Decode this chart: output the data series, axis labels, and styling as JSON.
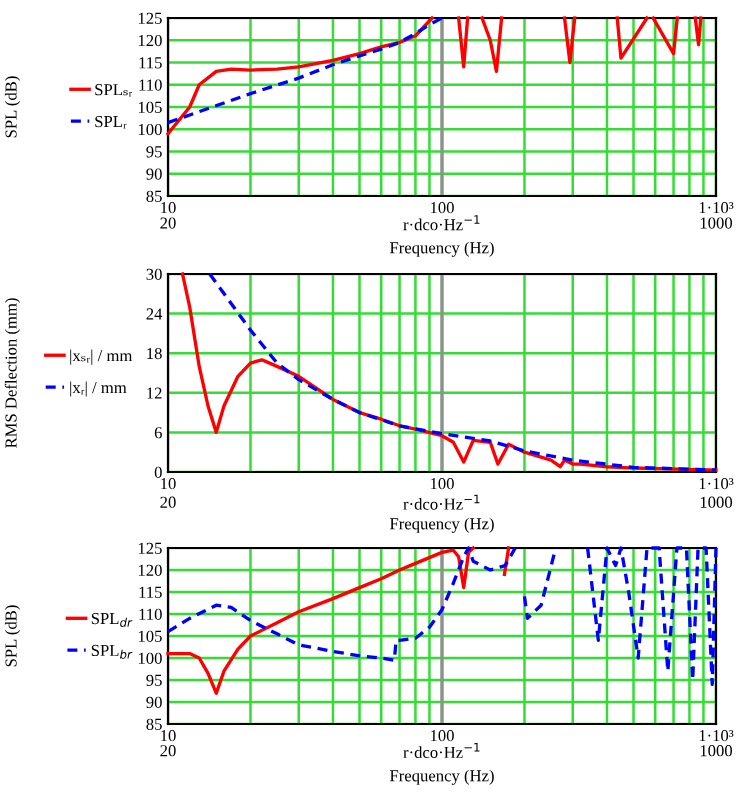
{
  "chart_data": [
    {
      "type": "line",
      "ylabel": "SPL (dB)",
      "xlabel": "Frequency (Hz)",
      "annotations": [
        "20",
        "1000",
        "r·dco·Hz$^{−1}$"
      ],
      "log": "x",
      "grid": true,
      "legend": "left",
      "xlim": [
        10,
        1000
      ],
      "xticks": [
        {
          "value": 10,
          "label": "10"
        },
        {
          "value": 20,
          "label": null
        },
        {
          "value": 30,
          "label": null
        },
        {
          "value": 40,
          "label": null
        },
        {
          "value": 50,
          "label": null
        },
        {
          "value": 60,
          "label": null
        },
        {
          "value": 70,
          "label": null
        },
        {
          "value": 80,
          "label": null
        },
        {
          "value": 90,
          "label": null
        },
        {
          "value": 100,
          "label": "100"
        },
        {
          "value": 200,
          "label": null
        },
        {
          "value": 300,
          "label": null
        },
        {
          "value": 400,
          "label": null
        },
        {
          "value": 500,
          "label": null
        },
        {
          "value": 600,
          "label": null
        },
        {
          "value": 700,
          "label": null
        },
        {
          "value": 800,
          "label": null
        },
        {
          "value": 900,
          "label": null
        },
        {
          "value": 1000,
          "label": "1·10³"
        }
      ],
      "ylim": [
        85,
        125
      ],
      "yticks": [
        85,
        90,
        95,
        100,
        105,
        110,
        115,
        120,
        125
      ],
      "ref_lines": [
        {
          "axis": "x",
          "value": 100,
          "color": "#909090"
        }
      ],
      "series": [
        {
          "name": "SPLₛᵣ",
          "color": "#ff0000",
          "line_style": "solid",
          "x": [
            10,
            12,
            13,
            15,
            17,
            20,
            25,
            30,
            40,
            50,
            60,
            70,
            80,
            92,
            110,
            115,
            120,
            124,
            127,
            140,
            150,
            158,
            165,
            170,
            280,
            293,
            305,
            420,
            436,
            450,
            560,
            576,
            590,
            700,
            722,
            740,
            840,
            864,
            880
          ],
          "values": [
            99,
            105,
            110,
            113,
            113.5,
            113.3,
            113.5,
            114,
            115.5,
            117,
            118.5,
            119.5,
            121,
            125,
            null,
            125,
            114,
            125,
            null,
            125,
            120,
            113,
            125,
            null,
            125,
            115,
            125,
            null,
            125,
            116,
            125,
            null,
            125,
            117,
            125,
            null,
            125,
            119,
            125
          ]
        },
        {
          "name": "SPLᵣ",
          "color": "#0000ff",
          "line_style": "dashed",
          "x": [
            10,
            20,
            30,
            40,
            50,
            60,
            70,
            80,
            90,
            100
          ],
          "values": [
            101.5,
            108,
            111.5,
            114.5,
            116.5,
            118,
            119.5,
            121.5,
            123.5,
            125
          ]
        }
      ]
    },
    {
      "type": "line",
      "ylabel": "RMS Deflection (mm)",
      "xlabel": "Frequency (Hz)",
      "annotations": [
        "20",
        "1000",
        "r·dco·Hz$^{−1}$"
      ],
      "log": "x",
      "grid": true,
      "legend": "left",
      "xlim": [
        10,
        1000
      ],
      "xticks": [
        {
          "value": 10,
          "label": "10"
        },
        {
          "value": 20,
          "label": null
        },
        {
          "value": 30,
          "label": null
        },
        {
          "value": 40,
          "label": null
        },
        {
          "value": 50,
          "label": null
        },
        {
          "value": 60,
          "label": null
        },
        {
          "value": 70,
          "label": null
        },
        {
          "value": 80,
          "label": null
        },
        {
          "value": 90,
          "label": null
        },
        {
          "value": 100,
          "label": "100"
        },
        {
          "value": 200,
          "label": null
        },
        {
          "value": 300,
          "label": null
        },
        {
          "value": 400,
          "label": null
        },
        {
          "value": 500,
          "label": null
        },
        {
          "value": 600,
          "label": null
        },
        {
          "value": 700,
          "label": null
        },
        {
          "value": 800,
          "label": null
        },
        {
          "value": 900,
          "label": null
        },
        {
          "value": 1000,
          "label": "1·10³"
        }
      ],
      "ylim": [
        0,
        30
      ],
      "yticks": [
        0,
        6,
        12,
        18,
        24,
        30
      ],
      "ref_lines": [
        {
          "axis": "x",
          "value": 100,
          "color": "#909090"
        }
      ],
      "series": [
        {
          "name": "|xₛᵣ| / mm",
          "color": "#ff0000",
          "line_style": "solid",
          "x": [
            11.3,
            12,
            13,
            14,
            15,
            16,
            18,
            20,
            22,
            25,
            30,
            40,
            50,
            60,
            70,
            80,
            100,
            110,
            120,
            130,
            150,
            160,
            175,
            200,
            250,
            270,
            280,
            300,
            320,
            400,
            500,
            1000
          ],
          "values": [
            30,
            25,
            16,
            10,
            6,
            10,
            14.5,
            16.5,
            17,
            16,
            14.5,
            11,
            9,
            8,
            7,
            6.5,
            5.5,
            4.5,
            1.5,
            4.8,
            4.5,
            1.2,
            4.2,
            3,
            1.8,
            0.8,
            1.8,
            1.2,
            1.2,
            0.8,
            0.6,
            0.3
          ]
        },
        {
          "name": "|xᵣ| / mm",
          "color": "#0000ff",
          "line_style": "dashed",
          "x": [
            14.2,
            20,
            25,
            30,
            40,
            50,
            70,
            100,
            150,
            200,
            300,
            500,
            1000
          ],
          "values": [
            30,
            21.5,
            16.5,
            14,
            11,
            9,
            7,
            5.8,
            4.7,
            3.2,
            1.8,
            0.7,
            0.3
          ]
        }
      ]
    },
    {
      "type": "line",
      "ylabel": "SPL (dB)",
      "xlabel": "Frequency (Hz)",
      "annotations": [
        "20",
        "1000",
        "r·dco·Hz$^{−1}$"
      ],
      "log": "x",
      "grid": true,
      "legend": "left",
      "xlim": [
        10,
        1000
      ],
      "xticks": [
        {
          "value": 10,
          "label": "10"
        },
        {
          "value": 20,
          "label": null
        },
        {
          "value": 30,
          "label": null
        },
        {
          "value": 40,
          "label": null
        },
        {
          "value": 50,
          "label": null
        },
        {
          "value": 60,
          "label": null
        },
        {
          "value": 70,
          "label": null
        },
        {
          "value": 80,
          "label": null
        },
        {
          "value": 90,
          "label": null
        },
        {
          "value": 100,
          "label": "100"
        },
        {
          "value": 200,
          "label": null
        },
        {
          "value": 300,
          "label": null
        },
        {
          "value": 400,
          "label": null
        },
        {
          "value": 500,
          "label": null
        },
        {
          "value": 600,
          "label": null
        },
        {
          "value": 700,
          "label": null
        },
        {
          "value": 800,
          "label": null
        },
        {
          "value": 900,
          "label": null
        },
        {
          "value": 1000,
          "label": "1·10³"
        }
      ],
      "ylim": [
        85,
        125
      ],
      "yticks": [
        85,
        90,
        95,
        100,
        105,
        110,
        115,
        120,
        125
      ],
      "ref_lines": [
        {
          "axis": "x",
          "value": 100,
          "color": "#909090"
        }
      ],
      "series": [
        {
          "name": "SPL$_{dr}$",
          "color": "#ff0000",
          "line_style": "solid",
          "x": [
            10,
            12,
            13,
            14,
            15,
            16,
            18,
            20,
            25,
            30,
            40,
            50,
            60,
            70,
            80,
            100,
            110,
            115,
            120,
            125,
            130,
            160,
            169,
            175
          ],
          "values": [
            101,
            101,
            100,
            96.5,
            92,
            97,
            102,
            105,
            108,
            110.5,
            113.5,
            116,
            118,
            120,
            121.5,
            124,
            124.5,
            123,
            116,
            124,
            125,
            null,
            119,
            125
          ]
        },
        {
          "name": "SPL$_{br}$",
          "color": "#0000ff",
          "line_style": "dashed",
          "x": [
            10,
            12,
            15,
            17,
            20,
            25,
            30,
            40,
            50,
            60,
            67,
            68,
            70,
            80,
            90,
            100,
            110,
            120,
            125,
            130,
            150,
            170,
            185,
            190,
            200,
            205,
            230,
            260,
            270,
            340,
            372,
            400,
            430,
            450,
            480,
            520,
            560,
            620,
            667,
            720,
            780,
            822,
            860,
            920,
            969,
            1000
          ],
          "values": [
            106,
            109,
            112,
            111.5,
            108.5,
            105.5,
            103,
            101.5,
            100.5,
            100,
            99.5,
            104,
            104,
            104.5,
            107,
            111,
            117,
            123,
            125,
            122,
            120,
            121,
            125,
            null,
            114,
            109,
            112,
            125,
            null,
            125,
            104,
            125,
            121,
            125,
            115,
            100,
            125,
            125,
            97,
            125,
            125,
            95,
            125,
            125,
            94,
            125
          ]
        }
      ]
    }
  ]
}
